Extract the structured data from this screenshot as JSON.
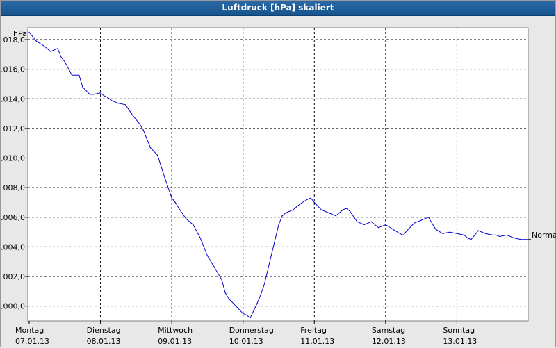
{
  "window": {
    "title": "Luftdruck [hPa] skaliert"
  },
  "chart_data": {
    "type": "line",
    "title": "Luftdruck [hPa] skaliert",
    "ylabel": "hPa",
    "xlabel": "",
    "ylim": [
      999.0,
      1018.8
    ],
    "yticks": [
      1000.0,
      1002.0,
      1004.0,
      1006.0,
      1008.0,
      1010.0,
      1012.0,
      1014.0,
      1016.0,
      1018.0
    ],
    "ytick_labels": [
      "1000,0",
      "1002,0",
      "1004,0",
      "1006,0",
      "1008,0",
      "1010,0",
      "1012,0",
      "1014,0",
      "1016,0",
      "1018,0"
    ],
    "xlim": [
      0,
      7
    ],
    "x_unit": "days",
    "days": [
      {
        "day": "Montag",
        "date": "07.01.13"
      },
      {
        "day": "Dienstag",
        "date": "08.01.13"
      },
      {
        "day": "Mittwoch",
        "date": "09.01.13"
      },
      {
        "day": "Donnerstag",
        "date": "10.01.13"
      },
      {
        "day": "Freitag",
        "date": "11.01.13"
      },
      {
        "day": "Samstag",
        "date": "12.01.13"
      },
      {
        "day": "Sonntag",
        "date": "13.01.13"
      }
    ],
    "grid": true,
    "reference_label": "Normal",
    "reference_value": 1004.5,
    "line_color": "#0000cc",
    "grid_color": "#000000",
    "plot_background": "#ffffff",
    "series": [
      {
        "x": [
          0.0,
          0.1,
          0.2,
          0.3,
          0.4,
          0.45,
          0.5,
          0.6,
          0.7,
          0.75,
          0.85,
          0.9,
          1.0,
          1.05,
          1.1,
          1.15,
          1.2,
          1.25,
          1.35,
          1.45,
          1.55,
          1.6,
          1.7,
          1.8,
          1.9,
          2.0,
          2.05,
          2.1,
          2.2,
          2.25,
          2.3,
          2.4,
          2.5,
          2.55,
          2.6,
          2.7,
          2.75,
          2.8,
          2.9,
          3.0,
          3.05,
          3.1,
          3.2,
          3.25,
          3.3,
          3.4,
          3.5,
          3.55,
          3.6,
          3.7,
          3.75,
          3.8,
          3.9,
          3.95,
          4.0,
          4.1,
          4.2,
          4.3,
          4.4,
          4.45,
          4.5,
          4.6,
          4.7,
          4.8,
          4.9,
          4.95,
          5.0,
          5.1,
          5.2,
          5.25,
          5.3,
          5.4,
          5.5,
          5.6,
          5.65,
          5.7,
          5.8,
          5.9,
          6.0,
          6.1,
          6.15,
          6.2,
          6.3,
          6.4,
          6.5,
          6.55,
          6.6,
          6.7,
          6.8,
          6.9,
          6.95,
          7.0
        ],
        "values": [
          1018.5,
          1017.9,
          1017.6,
          1017.2,
          1017.4,
          1016.8,
          1016.5,
          1015.6,
          1015.6,
          1014.8,
          1014.3,
          1014.3,
          1014.4,
          1014.2,
          1014.1,
          1013.9,
          1013.8,
          1013.7,
          1013.6,
          1012.9,
          1012.3,
          1011.9,
          1010.7,
          1010.2,
          1008.7,
          1007.3,
          1007.0,
          1006.6,
          1005.9,
          1005.7,
          1005.5,
          1004.6,
          1003.4,
          1003.0,
          1002.6,
          1001.8,
          1000.9,
          1000.5,
          1000.0,
          999.5,
          999.4,
          999.2,
          1000.2,
          1000.8,
          1001.5,
          1003.5,
          1005.5,
          1006.1,
          1006.3,
          1006.5,
          1006.7,
          1006.9,
          1007.2,
          1007.3,
          1007.0,
          1006.5,
          1006.3,
          1006.1,
          1006.5,
          1006.6,
          1006.4,
          1005.7,
          1005.5,
          1005.7,
          1005.3,
          1005.4,
          1005.5,
          1005.2,
          1004.9,
          1004.8,
          1005.1,
          1005.6,
          1005.8,
          1006.0,
          1005.6,
          1005.2,
          1004.9,
          1005.0,
          1004.9,
          1004.8,
          1004.6,
          1004.5,
          1005.1,
          1004.9,
          1004.8,
          1004.8,
          1004.7,
          1004.8,
          1004.6,
          1004.5,
          1004.5,
          1004.5
        ]
      }
    ]
  }
}
